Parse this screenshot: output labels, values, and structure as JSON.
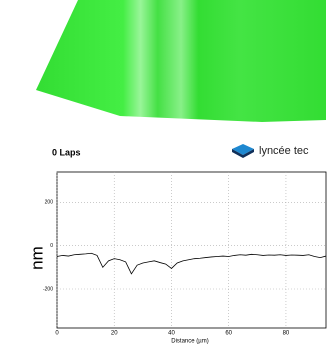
{
  "label": "0 Laps",
  "logo": "lyncée tec",
  "chart_data": {
    "type": "line",
    "xlabel": "Distance (µm)",
    "ylabel": "nm",
    "x": [
      0,
      2,
      4,
      6,
      8,
      10,
      12,
      14,
      16,
      18,
      20,
      22,
      24,
      26,
      28,
      30,
      32,
      34,
      36,
      38,
      40,
      42,
      44,
      46,
      48,
      50,
      52,
      54,
      56,
      58,
      60,
      62,
      64,
      66,
      68,
      70,
      72,
      74,
      76,
      78,
      80,
      82,
      84,
      86,
      88,
      90,
      92,
      94
    ],
    "values": [
      -50,
      -45,
      -48,
      -42,
      -40,
      -38,
      -35,
      -45,
      -100,
      -70,
      -60,
      -65,
      -75,
      -130,
      -90,
      -80,
      -75,
      -70,
      -78,
      -85,
      -105,
      -80,
      -70,
      -65,
      -60,
      -58,
      -55,
      -52,
      -50,
      -48,
      -50,
      -45,
      -42,
      -44,
      -40,
      -42,
      -45,
      -43,
      -44,
      -42,
      -45,
      -43,
      -44,
      -45,
      -42,
      -50,
      -55,
      -48
    ],
    "color": "#000000",
    "xlim": [
      0,
      94
    ],
    "ylim": [
      -380,
      340
    ],
    "xticks": [
      0,
      20,
      40,
      60,
      80
    ],
    "yticks": [
      200,
      0,
      -200
    ],
    "grid": true
  }
}
